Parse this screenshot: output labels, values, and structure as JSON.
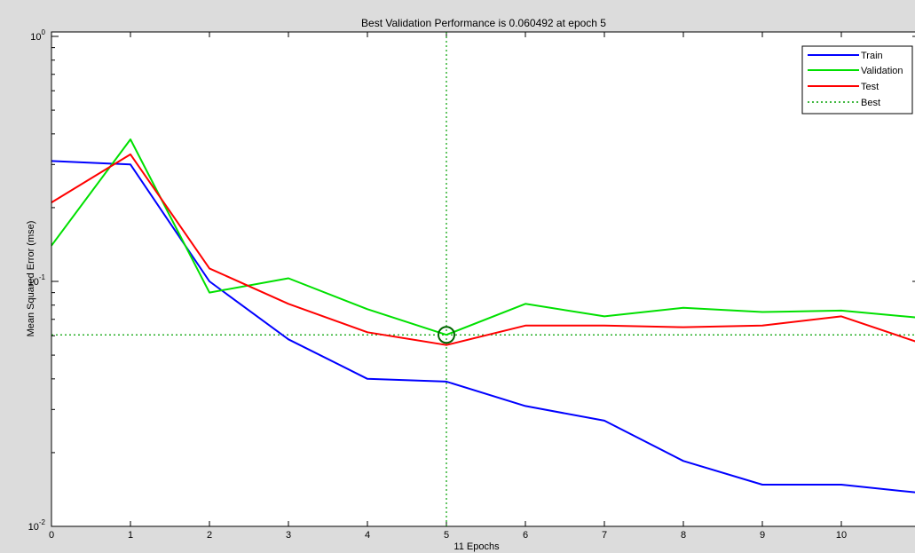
{
  "chart_data": {
    "type": "line",
    "title": "Best Validation Performance is 0.060492 at epoch 5",
    "xlabel": "11 Epochs",
    "ylabel": "Mean Squared Error  (mse)",
    "y_scale": "log",
    "xlim": [
      0,
      11
    ],
    "ylim": [
      0.01,
      1
    ],
    "x_ticks": [
      "0",
      "1",
      "2",
      "3",
      "4",
      "5",
      "6",
      "7",
      "8",
      "9",
      "10"
    ],
    "y_ticks": [
      {
        "value": 1,
        "base": "10",
        "exp": "0"
      },
      {
        "value": 0.1,
        "base": "10",
        "exp": "-1"
      },
      {
        "value": 0.01,
        "base": "10",
        "exp": "-2"
      }
    ],
    "grid": false,
    "legend_position": "top-right",
    "x": [
      0,
      1,
      2,
      3,
      4,
      5,
      6,
      7,
      8,
      9,
      10,
      11
    ],
    "series": [
      {
        "name": "Train",
        "color": "#0000ff",
        "style": "solid",
        "values": [
          0.31,
          0.3,
          0.1,
          0.058,
          0.04,
          0.039,
          0.031,
          0.027,
          0.0185,
          0.0148,
          0.0148,
          0.0137
        ]
      },
      {
        "name": "Validation",
        "color": "#00e000",
        "style": "solid",
        "values": [
          0.14,
          0.38,
          0.09,
          0.103,
          0.077,
          0.0605,
          0.081,
          0.072,
          0.078,
          0.075,
          0.076,
          0.071
        ]
      },
      {
        "name": "Test",
        "color": "#ff0000",
        "style": "solid",
        "values": [
          0.21,
          0.33,
          0.113,
          0.081,
          0.062,
          0.055,
          0.066,
          0.066,
          0.065,
          0.066,
          0.072,
          0.056
        ]
      }
    ],
    "best": {
      "name": "Best",
      "color": "#00a000",
      "style": "dotted",
      "epoch": 5,
      "value": 0.060492
    }
  }
}
